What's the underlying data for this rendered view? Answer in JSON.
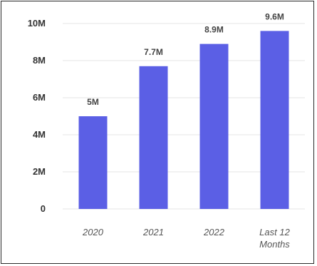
{
  "chart_data": {
    "type": "bar",
    "categories": [
      "2020",
      "2021",
      "2022",
      "Last 12 Months"
    ],
    "category_lines": [
      [
        "2020"
      ],
      [
        "2021"
      ],
      [
        "2022"
      ],
      [
        "Last 12",
        "Months"
      ]
    ],
    "values": [
      5000000,
      7700000,
      8900000,
      9600000
    ],
    "data_labels": [
      "5M",
      "7.7M",
      "8.9M",
      "9.6M"
    ],
    "yticks": [
      0,
      2000000,
      4000000,
      6000000,
      8000000,
      10000000
    ],
    "ytick_labels": [
      "0",
      "2M",
      "4M",
      "6M",
      "8M",
      "10M"
    ],
    "ylim": [
      0,
      10000000
    ],
    "grid": true,
    "legend": false,
    "title": "",
    "xlabel": "",
    "ylabel": "",
    "colors": {
      "bar": "#5b5fe5"
    }
  }
}
